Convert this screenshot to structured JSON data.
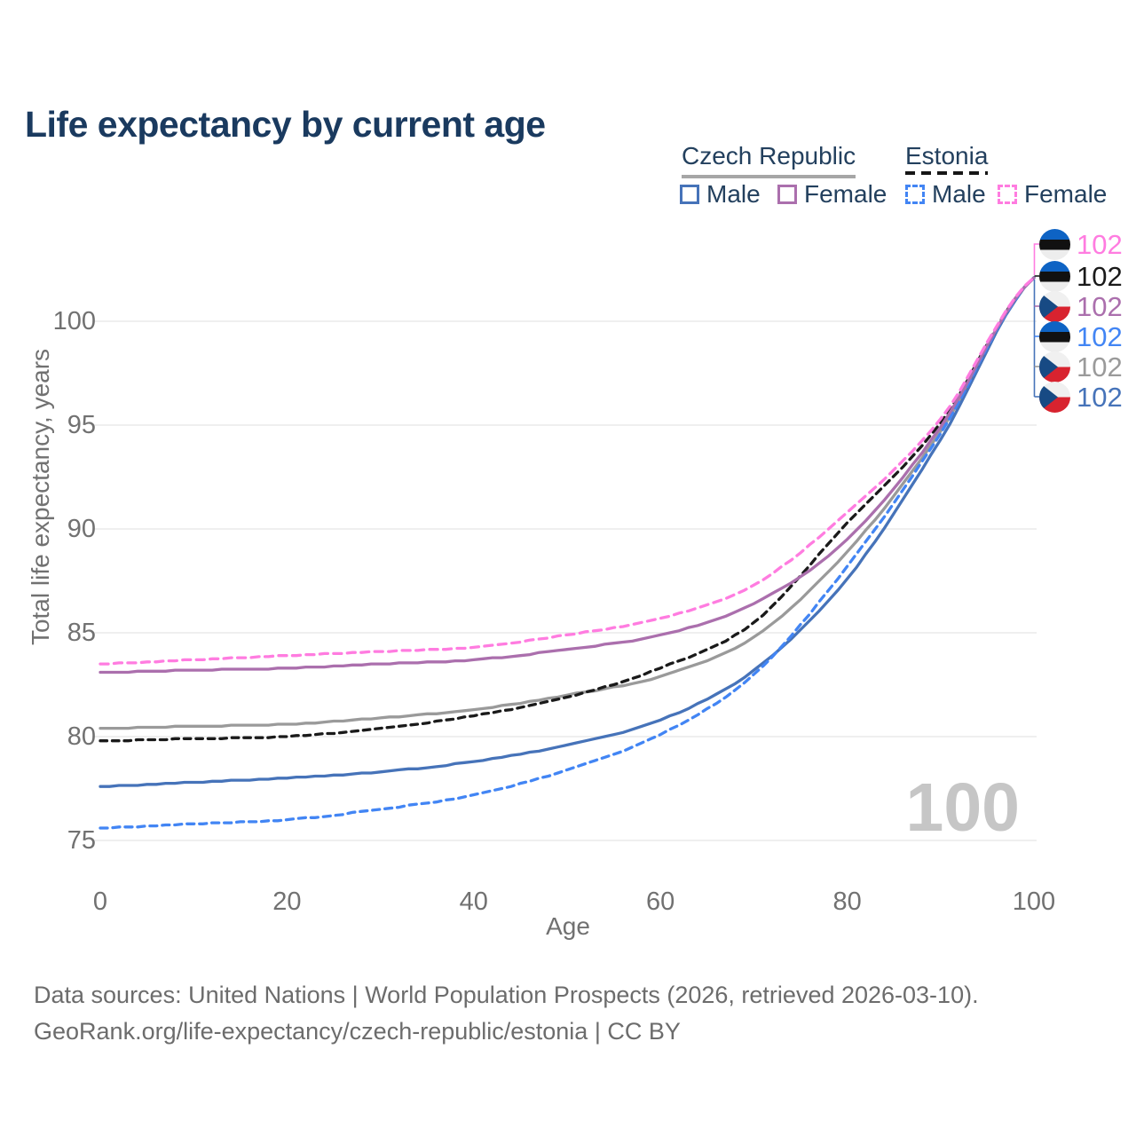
{
  "title": "Life expectancy by current age",
  "legend": {
    "groups": [
      {
        "label": "Czech Republic",
        "line_style": "solid",
        "underline_color": "#a6a6a6"
      },
      {
        "label": "Estonia",
        "line_style": "dashed",
        "underline_color": "#161616"
      }
    ],
    "items": [
      {
        "label": "Male",
        "country": "Czech Republic",
        "color": "#4673b9",
        "dashed": false
      },
      {
        "label": "Female",
        "country": "Czech Republic",
        "color": "#ab6fad",
        "dashed": false
      },
      {
        "label": "Male",
        "country": "Estonia",
        "color": "#4285f4",
        "dashed": true
      },
      {
        "label": "Female",
        "country": "Estonia",
        "color": "#ff7ce0",
        "dashed": true
      }
    ]
  },
  "watermark": "100",
  "footer": {
    "line1": "Data sources: United Nations | World Population Prospects (2026, retrieved 2026-03-10).",
    "line2": "GeoRank.org/life-expectancy/czech-republic/estonia | CC BY"
  },
  "flags": {
    "ee": {
      "name": "estonia-flag-icon",
      "blue": "#0e63c4",
      "black": "#111111",
      "white": "#ededed"
    },
    "cz": {
      "name": "czech-flag-icon",
      "white": "#f0f0f0",
      "red": "#d8232f",
      "blue": "#174a84"
    }
  },
  "chart_data": {
    "type": "line",
    "title": "Life expectancy by current age",
    "xlabel": "Age",
    "ylabel": "Total life expectancy, years",
    "x": [
      0,
      10,
      20,
      30,
      40,
      50,
      60,
      70,
      80,
      90,
      100
    ],
    "x_ticks": [
      0,
      20,
      40,
      60,
      80,
      100
    ],
    "y_ticks": [
      75,
      80,
      85,
      90,
      95,
      100
    ],
    "xlim": [
      0,
      100
    ],
    "ylim": [
      73.5,
      103
    ],
    "grid": "horizontal",
    "legend_position": "top-right",
    "series": [
      {
        "name": "Estonia Female",
        "country": "Estonia",
        "sex": "Female",
        "color": "#ff7ce0",
        "dash": "9 6.5",
        "flag": "ee",
        "end_label": "102",
        "values": [
          83.5,
          83.7,
          83.9,
          84.1,
          84.3,
          84.9,
          85.7,
          87.3,
          90.8,
          95.3,
          102.1
        ]
      },
      {
        "name": "Estonia Total",
        "country": "Estonia",
        "sex": "Both",
        "color": "#1a1a1a",
        "dash": "7.5 6",
        "flag": "ee",
        "end_label": "102",
        "values": [
          79.8,
          79.9,
          80.0,
          80.4,
          81.0,
          81.9,
          83.3,
          85.5,
          90.3,
          95.1,
          102.1
        ]
      },
      {
        "name": "Czech Republic Female",
        "country": "Czech Republic",
        "sex": "Female",
        "color": "#ab6fad",
        "dash": null,
        "flag": "cz",
        "end_label": "102",
        "values": [
          83.1,
          83.2,
          83.3,
          83.5,
          83.7,
          84.2,
          84.9,
          86.4,
          89.5,
          94.9,
          102.1
        ]
      },
      {
        "name": "Estonia Male",
        "country": "Estonia",
        "sex": "Male",
        "color": "#4285f4",
        "dash": "8 6",
        "flag": "ee",
        "end_label": "102",
        "values": [
          75.6,
          75.8,
          76.0,
          76.5,
          77.2,
          78.4,
          80.1,
          83.0,
          88.2,
          94.6,
          102.1
        ]
      },
      {
        "name": "Czech Republic Total",
        "country": "Czech Republic",
        "sex": "Both",
        "color": "#9a9a9a",
        "dash": null,
        "flag": "cz",
        "end_label": "102",
        "values": [
          80.4,
          80.5,
          80.6,
          80.9,
          81.3,
          82.0,
          82.9,
          84.8,
          88.9,
          94.7,
          102.1
        ]
      },
      {
        "name": "Czech Republic Male",
        "country": "Czech Republic",
        "sex": "Male",
        "color": "#4673b9",
        "dash": null,
        "flag": "cz",
        "end_label": "102",
        "values": [
          77.6,
          77.8,
          78.0,
          78.3,
          78.8,
          79.6,
          80.8,
          83.2,
          87.6,
          94.3,
          102.1
        ]
      }
    ]
  }
}
